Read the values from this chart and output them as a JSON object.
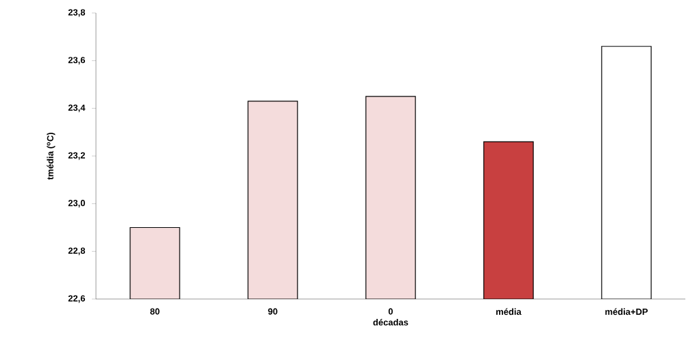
{
  "chart_data": {
    "type": "bar",
    "xlabel": "décadas",
    "ylabel": "tmédia ($^{o}$C)",
    "categories": [
      "80",
      "90",
      "0",
      "média",
      "média+DP"
    ],
    "values": [
      22.9,
      23.43,
      23.45,
      23.26,
      23.66
    ],
    "colors": [
      "#f4dcdc",
      "#f4dcdc",
      "#f4dcdc",
      "#c84040",
      "#ffffff"
    ],
    "ylim": [
      22.6,
      23.8
    ],
    "yticks": [
      {
        "value": 22.6,
        "label": "22,6"
      },
      {
        "value": 22.8,
        "label": "22,8"
      },
      {
        "value": 23.0,
        "label": "23,0"
      },
      {
        "value": 23.2,
        "label": "23,2"
      },
      {
        "value": 23.4,
        "label": "23,4"
      },
      {
        "value": 23.6,
        "label": "23,6"
      },
      {
        "value": 23.8,
        "label": "23,8"
      }
    ],
    "grid": false
  }
}
